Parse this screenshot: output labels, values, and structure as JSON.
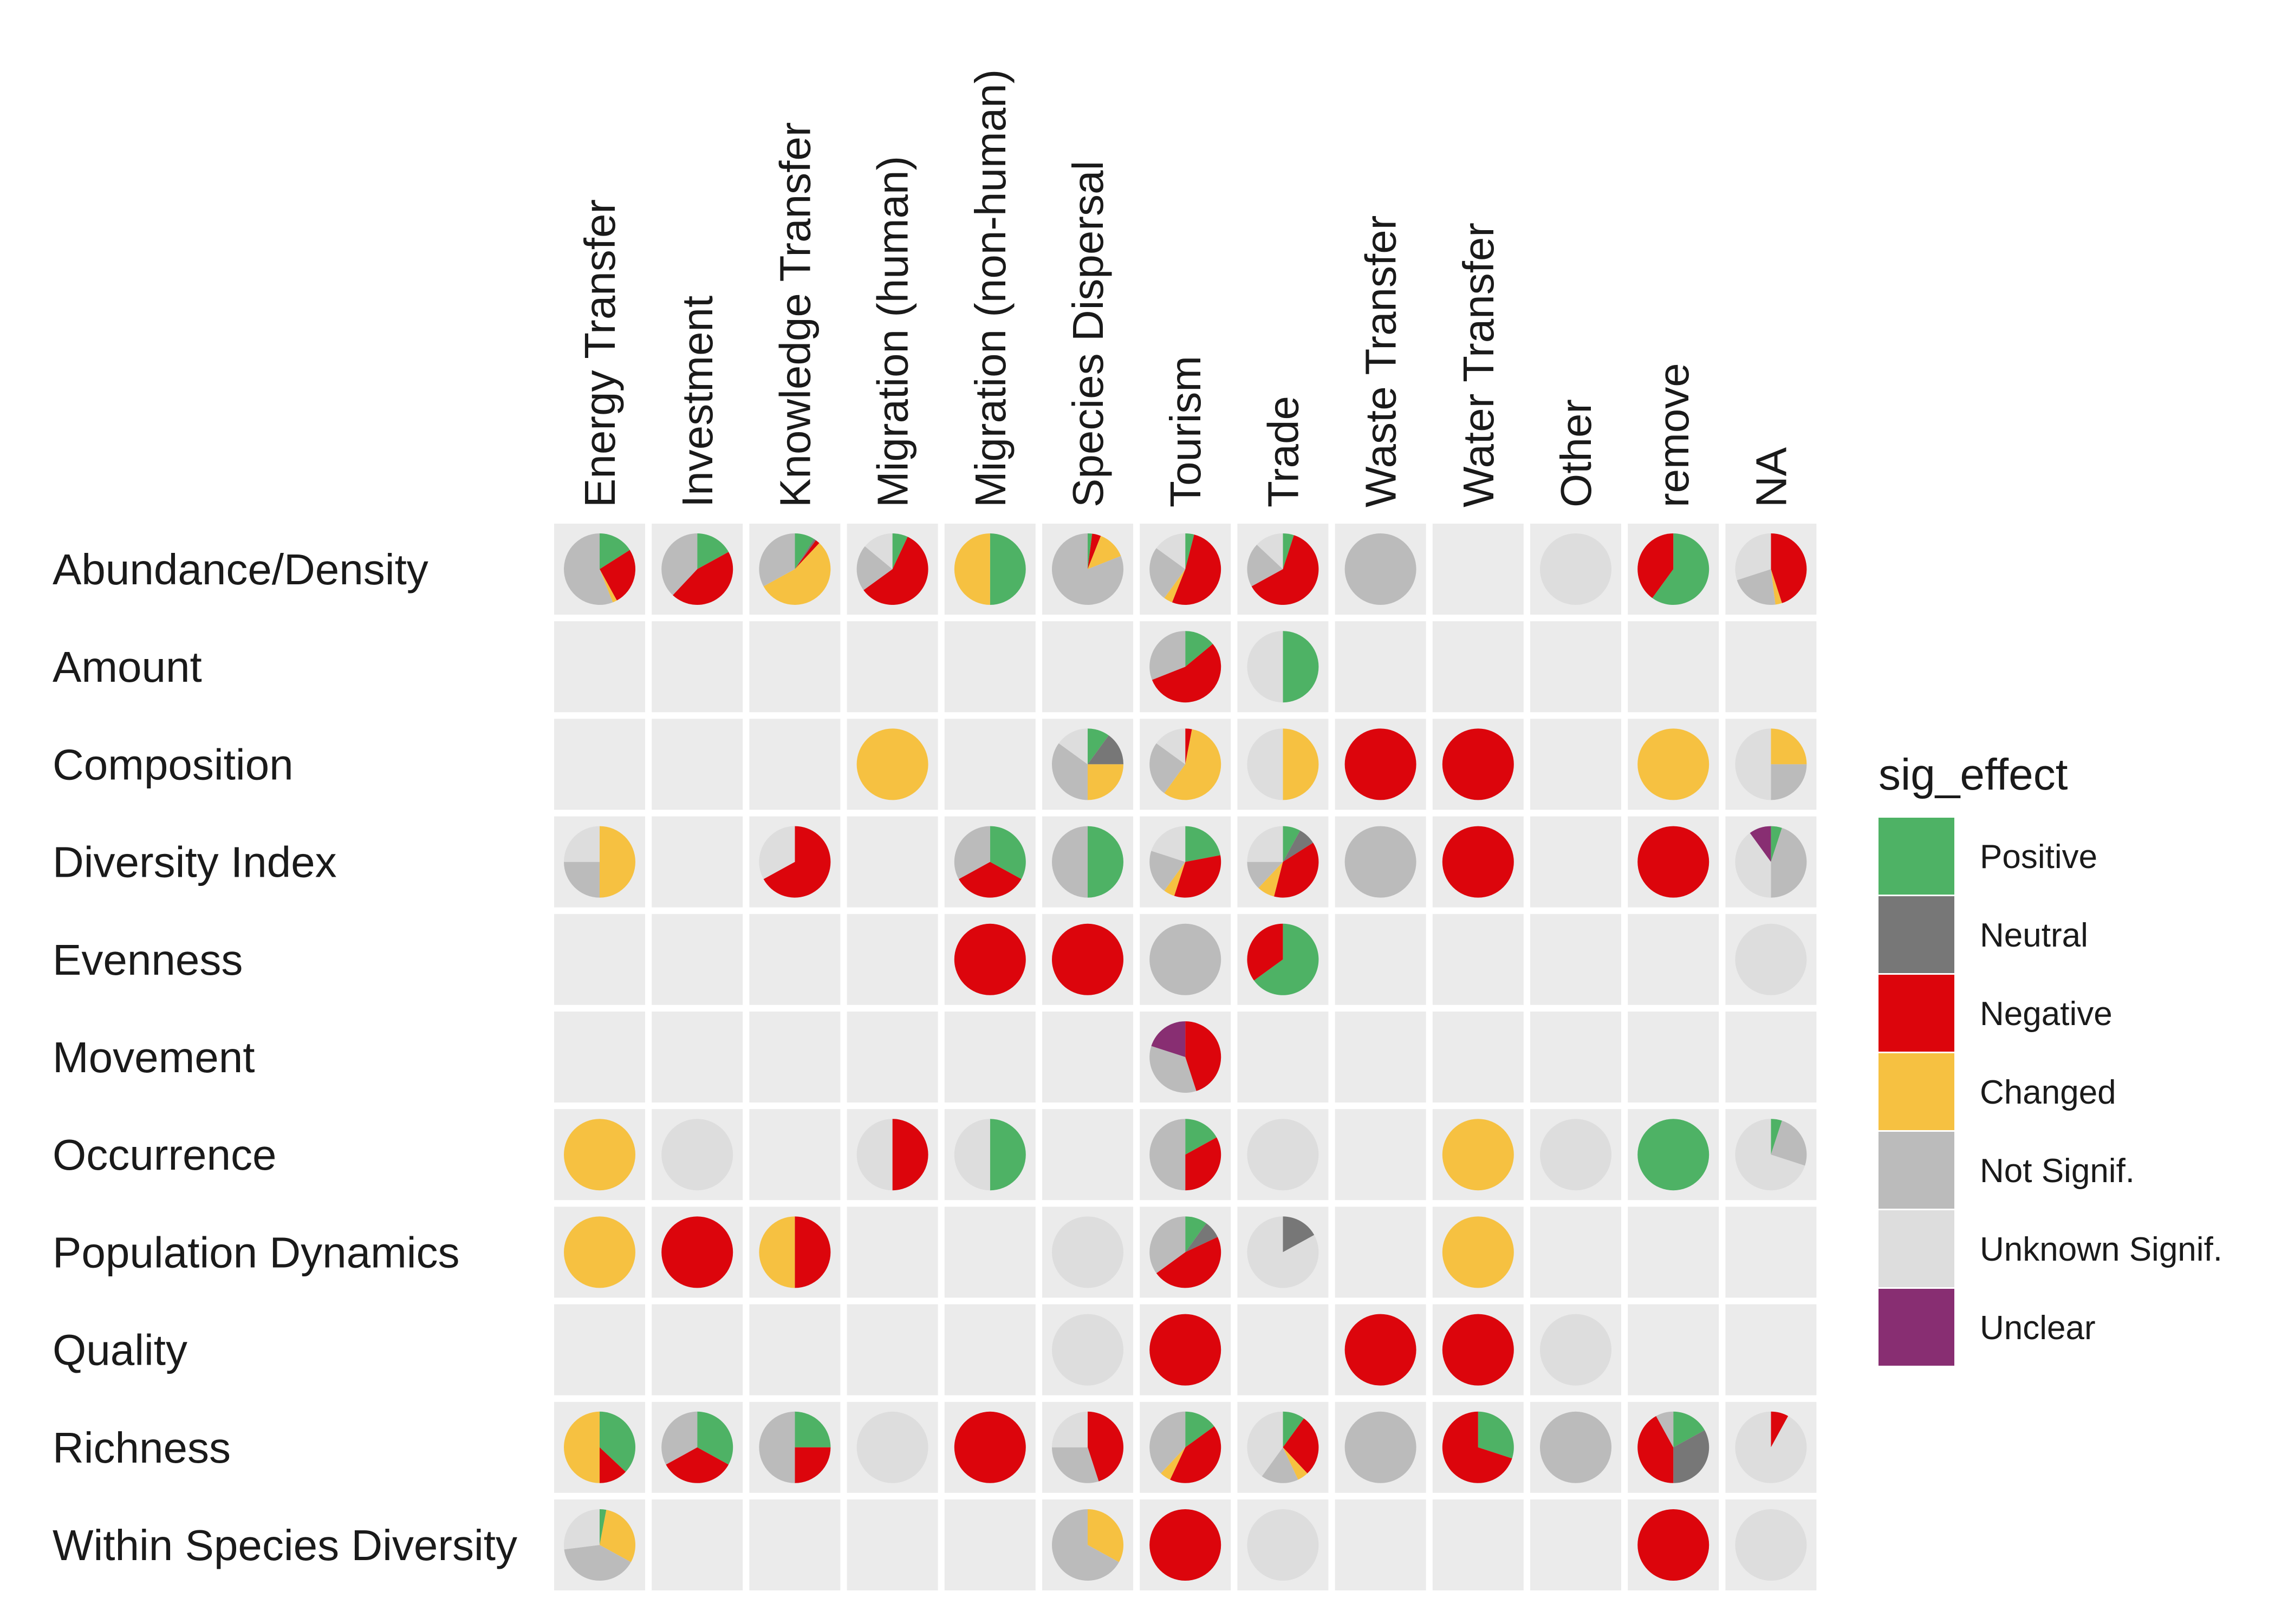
{
  "chart_data": {
    "type": "pie-grid",
    "columns": [
      "Energy Transfer",
      "Investment",
      "Knowledge Transfer",
      "Migration (human)",
      "Migration (non-human)",
      "Species Dispersal",
      "Tourism",
      "Trade",
      "Waste Transfer",
      "Water Transfer",
      "Other",
      "remove",
      "NA"
    ],
    "rows": [
      "Abundance/Density",
      "Amount",
      "Composition",
      "Diversity Index",
      "Evenness",
      "Movement",
      "Occurrence",
      "Population Dynamics",
      "Quality",
      "Richness",
      "Within Species Diversity"
    ],
    "legend": {
      "title": "sig_effect",
      "categories": [
        "Positive",
        "Neutral",
        "Negative",
        "Changed",
        "Not Signif.",
        "Unknown Signif.",
        "Unclear"
      ],
      "colors": [
        "#4eb265",
        "#777777",
        "#dc050c",
        "#f6c141",
        "#bbbbbb",
        "#dddddd",
        "#882e72"
      ]
    },
    "cells": [
      {
        "row": "Abundance/Density",
        "col": "Energy Transfer",
        "shares": [
          0.16,
          0,
          0.26,
          0.02,
          0.56,
          0,
          0
        ]
      },
      {
        "row": "Abundance/Density",
        "col": "Investment",
        "shares": [
          0.17,
          0,
          0.45,
          0,
          0.38,
          0,
          0
        ]
      },
      {
        "row": "Abundance/Density",
        "col": "Knowledge Transfer",
        "shares": [
          0.09,
          0.01,
          0.02,
          0.55,
          0.33,
          0,
          0
        ]
      },
      {
        "row": "Abundance/Density",
        "col": "Migration (human)",
        "shares": [
          0.07,
          0,
          0.58,
          0,
          0.21,
          0.14,
          0
        ]
      },
      {
        "row": "Abundance/Density",
        "col": "Migration (non-human)",
        "shares": [
          0.5,
          0,
          0,
          0.5,
          0,
          0,
          0
        ]
      },
      {
        "row": "Abundance/Density",
        "col": "Species Dispersal",
        "shares": [
          0.02,
          0,
          0.04,
          0.13,
          0.81,
          0,
          0
        ]
      },
      {
        "row": "Abundance/Density",
        "col": "Tourism",
        "shares": [
          0.04,
          0,
          0.52,
          0.04,
          0.25,
          0.15,
          0
        ]
      },
      {
        "row": "Abundance/Density",
        "col": "Trade",
        "shares": [
          0.05,
          0,
          0.62,
          0,
          0.2,
          0.13,
          0
        ]
      },
      {
        "row": "Abundance/Density",
        "col": "Waste Transfer",
        "shares": [
          0,
          0,
          0,
          0,
          1,
          0,
          0
        ]
      },
      {
        "row": "Abundance/Density",
        "col": "Other",
        "shares": [
          0,
          0,
          0,
          0,
          0,
          1,
          0
        ]
      },
      {
        "row": "Abundance/Density",
        "col": "remove",
        "shares": [
          0.6,
          0,
          0.4,
          0,
          0,
          0,
          0
        ]
      },
      {
        "row": "Abundance/Density",
        "col": "NA",
        "shares": [
          0,
          0,
          0.45,
          0.03,
          0.22,
          0.3,
          0
        ]
      },
      {
        "row": "Amount",
        "col": "Tourism",
        "shares": [
          0.14,
          0,
          0.55,
          0,
          0.31,
          0,
          0
        ]
      },
      {
        "row": "Amount",
        "col": "Trade",
        "shares": [
          0.5,
          0,
          0,
          0,
          0,
          0.5,
          0
        ]
      },
      {
        "row": "Composition",
        "col": "Migration (human)",
        "shares": [
          0,
          0,
          0,
          1,
          0,
          0,
          0
        ]
      },
      {
        "row": "Composition",
        "col": "Species Dispersal",
        "shares": [
          0.1,
          0.15,
          0,
          0.25,
          0.35,
          0.15,
          0
        ]
      },
      {
        "row": "Composition",
        "col": "Tourism",
        "shares": [
          0,
          0,
          0.03,
          0.57,
          0.25,
          0.15,
          0
        ]
      },
      {
        "row": "Composition",
        "col": "Trade",
        "shares": [
          0,
          0,
          0,
          0.5,
          0,
          0.5,
          0
        ]
      },
      {
        "row": "Composition",
        "col": "Waste Transfer",
        "shares": [
          0,
          0,
          1,
          0,
          0,
          0,
          0
        ]
      },
      {
        "row": "Composition",
        "col": "Water Transfer",
        "shares": [
          0,
          0,
          1,
          0,
          0,
          0,
          0
        ]
      },
      {
        "row": "Composition",
        "col": "remove",
        "shares": [
          0,
          0,
          0,
          1,
          0,
          0,
          0
        ]
      },
      {
        "row": "Composition",
        "col": "NA",
        "shares": [
          0,
          0,
          0,
          0.25,
          0.25,
          0.5,
          0
        ]
      },
      {
        "row": "Diversity Index",
        "col": "Energy Transfer",
        "shares": [
          0,
          0,
          0,
          0.5,
          0.25,
          0.25,
          0
        ]
      },
      {
        "row": "Diversity Index",
        "col": "Knowledge Transfer",
        "shares": [
          0,
          0,
          0.67,
          0,
          0,
          0.33,
          0
        ]
      },
      {
        "row": "Diversity Index",
        "col": "Migration (non-human)",
        "shares": [
          0.33,
          0,
          0.34,
          0,
          0.33,
          0,
          0
        ]
      },
      {
        "row": "Diversity Index",
        "col": "Species Dispersal",
        "shares": [
          0.5,
          0,
          0,
          0,
          0.5,
          0,
          0
        ]
      },
      {
        "row": "Diversity Index",
        "col": "Tourism",
        "shares": [
          0.22,
          0,
          0.33,
          0.05,
          0.2,
          0.2,
          0
        ]
      },
      {
        "row": "Diversity Index",
        "col": "Trade",
        "shares": [
          0.08,
          0.08,
          0.38,
          0.08,
          0.13,
          0.25,
          0
        ]
      },
      {
        "row": "Diversity Index",
        "col": "Waste Transfer",
        "shares": [
          0,
          0,
          0,
          0,
          1,
          0,
          0
        ]
      },
      {
        "row": "Diversity Index",
        "col": "Water Transfer",
        "shares": [
          0,
          0,
          1,
          0,
          0,
          0,
          0
        ]
      },
      {
        "row": "Diversity Index",
        "col": "remove",
        "shares": [
          0,
          0,
          1,
          0,
          0,
          0,
          0
        ]
      },
      {
        "row": "Diversity Index",
        "col": "NA",
        "shares": [
          0.05,
          0,
          0,
          0,
          0.45,
          0.4,
          0.1
        ]
      },
      {
        "row": "Evenness",
        "col": "Migration (non-human)",
        "shares": [
          0,
          0,
          1,
          0,
          0,
          0,
          0
        ]
      },
      {
        "row": "Evenness",
        "col": "Species Dispersal",
        "shares": [
          0,
          0,
          1,
          0,
          0,
          0,
          0
        ]
      },
      {
        "row": "Evenness",
        "col": "Tourism",
        "shares": [
          0,
          0,
          0,
          0,
          1,
          0,
          0
        ]
      },
      {
        "row": "Evenness",
        "col": "Trade",
        "shares": [
          0.65,
          0,
          0.35,
          0,
          0,
          0,
          0
        ]
      },
      {
        "row": "Evenness",
        "col": "NA",
        "shares": [
          0,
          0,
          0,
          0,
          0,
          1,
          0
        ]
      },
      {
        "row": "Movement",
        "col": "Tourism",
        "shares": [
          0,
          0,
          0.45,
          0,
          0.35,
          0,
          0.2
        ]
      },
      {
        "row": "Occurrence",
        "col": "Energy Transfer",
        "shares": [
          0,
          0,
          0,
          1,
          0,
          0,
          0
        ]
      },
      {
        "row": "Occurrence",
        "col": "Investment",
        "shares": [
          0,
          0,
          0,
          0,
          0,
          1,
          0
        ]
      },
      {
        "row": "Occurrence",
        "col": "Migration (human)",
        "shares": [
          0,
          0,
          0.5,
          0,
          0,
          0.5,
          0
        ]
      },
      {
        "row": "Occurrence",
        "col": "Migration (non-human)",
        "shares": [
          0.5,
          0,
          0,
          0,
          0,
          0.5,
          0
        ]
      },
      {
        "row": "Occurrence",
        "col": "Tourism",
        "shares": [
          0.17,
          0,
          0.33,
          0,
          0.5,
          0,
          0
        ]
      },
      {
        "row": "Occurrence",
        "col": "Trade",
        "shares": [
          0,
          0,
          0,
          0,
          0,
          1,
          0
        ]
      },
      {
        "row": "Occurrence",
        "col": "Water Transfer",
        "shares": [
          0,
          0,
          0,
          1,
          0,
          0,
          0
        ]
      },
      {
        "row": "Occurrence",
        "col": "Other",
        "shares": [
          0,
          0,
          0,
          0,
          0,
          1,
          0
        ]
      },
      {
        "row": "Occurrence",
        "col": "remove",
        "shares": [
          1,
          0,
          0,
          0,
          0,
          0,
          0
        ]
      },
      {
        "row": "Occurrence",
        "col": "NA",
        "shares": [
          0.05,
          0,
          0,
          0,
          0.25,
          0.7,
          0
        ]
      },
      {
        "row": "Population Dynamics",
        "col": "Energy Transfer",
        "shares": [
          0,
          0,
          0,
          1,
          0,
          0,
          0
        ]
      },
      {
        "row": "Population Dynamics",
        "col": "Investment",
        "shares": [
          0,
          0,
          1,
          0,
          0,
          0,
          0
        ]
      },
      {
        "row": "Population Dynamics",
        "col": "Knowledge Transfer",
        "shares": [
          0,
          0,
          0.5,
          0.5,
          0,
          0,
          0
        ]
      },
      {
        "row": "Population Dynamics",
        "col": "Species Dispersal",
        "shares": [
          0,
          0,
          0,
          0,
          0,
          1,
          0
        ]
      },
      {
        "row": "Population Dynamics",
        "col": "Tourism",
        "shares": [
          0.1,
          0.08,
          0.47,
          0,
          0.35,
          0,
          0
        ]
      },
      {
        "row": "Population Dynamics",
        "col": "Trade",
        "shares": [
          0,
          0.17,
          0,
          0,
          0,
          0.83,
          0
        ]
      },
      {
        "row": "Population Dynamics",
        "col": "Water Transfer",
        "shares": [
          0,
          0,
          0,
          1,
          0,
          0,
          0
        ]
      },
      {
        "row": "Quality",
        "col": "Species Dispersal",
        "shares": [
          0,
          0,
          0,
          0,
          0,
          1,
          0
        ]
      },
      {
        "row": "Quality",
        "col": "Tourism",
        "shares": [
          0,
          0,
          1,
          0,
          0,
          0,
          0
        ]
      },
      {
        "row": "Quality",
        "col": "Waste Transfer",
        "shares": [
          0,
          0,
          1,
          0,
          0,
          0,
          0
        ]
      },
      {
        "row": "Quality",
        "col": "Water Transfer",
        "shares": [
          0,
          0,
          1,
          0,
          0,
          0,
          0
        ]
      },
      {
        "row": "Quality",
        "col": "Other",
        "shares": [
          0,
          0,
          0,
          0,
          0,
          1,
          0
        ]
      },
      {
        "row": "Richness",
        "col": "Energy Transfer",
        "shares": [
          0.37,
          0,
          0.13,
          0.5,
          0,
          0,
          0
        ]
      },
      {
        "row": "Richness",
        "col": "Investment",
        "shares": [
          0.33,
          0,
          0.34,
          0,
          0.33,
          0,
          0
        ]
      },
      {
        "row": "Richness",
        "col": "Knowledge Transfer",
        "shares": [
          0.25,
          0,
          0.25,
          0,
          0.5,
          0,
          0
        ]
      },
      {
        "row": "Richness",
        "col": "Migration (human)",
        "shares": [
          0,
          0,
          0,
          0,
          0,
          1,
          0
        ]
      },
      {
        "row": "Richness",
        "col": "Migration (non-human)",
        "shares": [
          0,
          0,
          1,
          0,
          0,
          0,
          0
        ]
      },
      {
        "row": "Richness",
        "col": "Species Dispersal",
        "shares": [
          0,
          0,
          0.45,
          0,
          0.3,
          0.25,
          0
        ]
      },
      {
        "row": "Richness",
        "col": "Tourism",
        "shares": [
          0.15,
          0,
          0.42,
          0.05,
          0.38,
          0,
          0
        ]
      },
      {
        "row": "Richness",
        "col": "Trade",
        "shares": [
          0.1,
          0,
          0.28,
          0.05,
          0.17,
          0.4,
          0
        ]
      },
      {
        "row": "Richness",
        "col": "Waste Transfer",
        "shares": [
          0,
          0,
          0,
          0,
          1,
          0,
          0
        ]
      },
      {
        "row": "Richness",
        "col": "Water Transfer",
        "shares": [
          0.3,
          0,
          0.7,
          0,
          0,
          0,
          0
        ]
      },
      {
        "row": "Richness",
        "col": "Other",
        "shares": [
          0,
          0,
          0,
          0,
          1,
          0,
          0
        ]
      },
      {
        "row": "Richness",
        "col": "remove",
        "shares": [
          0.17,
          0.33,
          0.42,
          0,
          0.08,
          0,
          0
        ]
      },
      {
        "row": "Richness",
        "col": "NA",
        "shares": [
          0,
          0,
          0.08,
          0,
          0,
          0.92,
          0
        ]
      },
      {
        "row": "Within Species Diversity",
        "col": "Energy Transfer",
        "shares": [
          0.03,
          0,
          0,
          0.3,
          0.4,
          0.27,
          0
        ]
      },
      {
        "row": "Within Species Diversity",
        "col": "Species Dispersal",
        "shares": [
          0,
          0,
          0,
          0.33,
          0.67,
          0,
          0
        ]
      },
      {
        "row": "Within Species Diversity",
        "col": "Tourism",
        "shares": [
          0,
          0,
          1,
          0,
          0,
          0,
          0
        ]
      },
      {
        "row": "Within Species Diversity",
        "col": "Trade",
        "shares": [
          0,
          0,
          0,
          0,
          0,
          1,
          0
        ]
      },
      {
        "row": "Within Species Diversity",
        "col": "remove",
        "shares": [
          0,
          0,
          1,
          0,
          0,
          0,
          0
        ]
      },
      {
        "row": "Within Species Diversity",
        "col": "NA",
        "shares": [
          0,
          0,
          0,
          0,
          0,
          1,
          0
        ]
      }
    ]
  }
}
